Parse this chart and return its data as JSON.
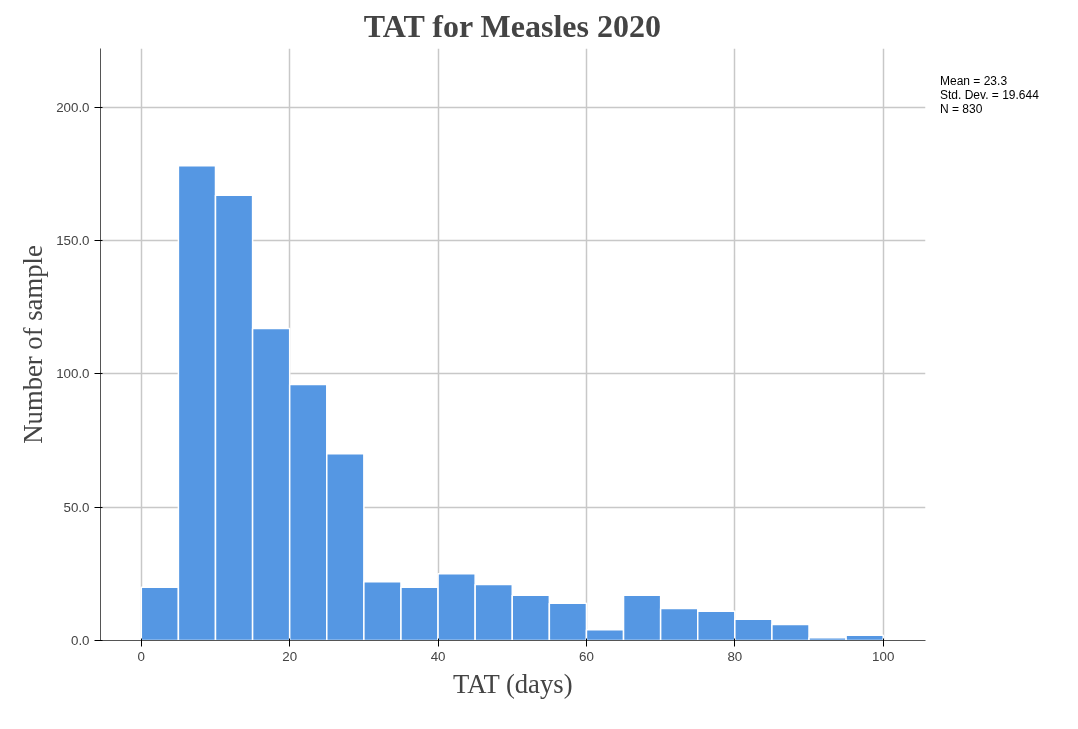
{
  "chart_data": {
    "type": "histogram",
    "title": "TAT for Measles 2020",
    "xlabel": "TAT (days)",
    "ylabel": "Number of sample",
    "bins": [
      0,
      5,
      10,
      15,
      20,
      25,
      30,
      35,
      40,
      45,
      50,
      55,
      60,
      65,
      70,
      75,
      80,
      85,
      90,
      95,
      100
    ],
    "values": [
      20,
      178,
      167,
      117,
      96,
      70,
      22,
      20,
      25,
      21,
      17,
      14,
      4,
      17,
      12,
      11,
      8,
      6,
      1,
      2
    ],
    "color": "#5597e3",
    "xlim": [
      -5.5,
      105.7
    ],
    "ylim": [
      0,
      222
    ],
    "xticks": [
      0,
      20,
      40,
      60,
      80,
      100
    ],
    "yticks": [
      {
        "value": 0,
        "label": "0.0"
      },
      {
        "value": 50,
        "label": "50.0"
      },
      {
        "value": 100,
        "label": "100.0"
      },
      {
        "value": 150,
        "label": "150.0"
      },
      {
        "value": 200,
        "label": "200.0"
      }
    ],
    "grid": true,
    "annotations": [
      "Mean = 23.3",
      "Std. Dev. = 19.644",
      "N = 830"
    ]
  }
}
